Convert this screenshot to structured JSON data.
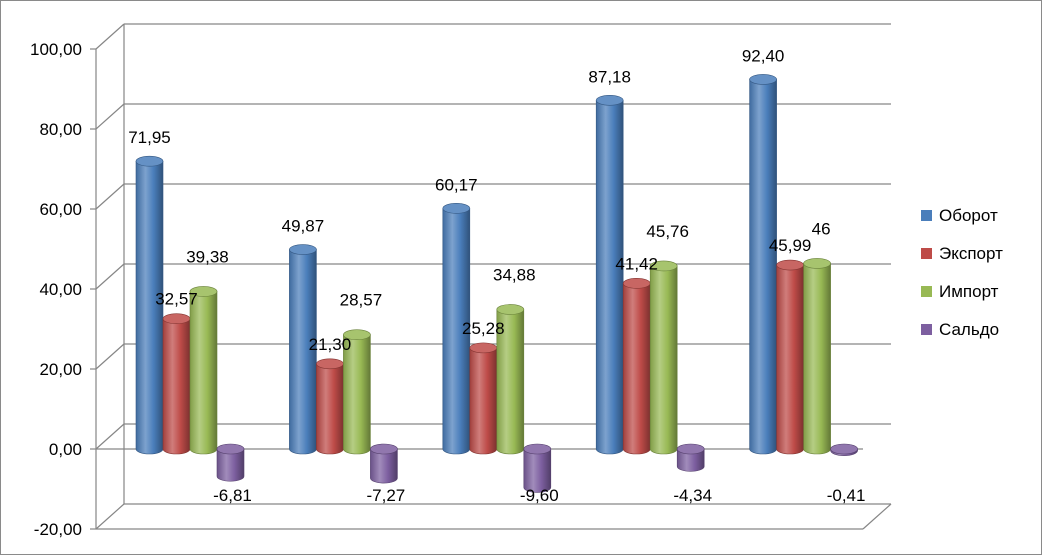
{
  "chart_data": {
    "type": "bar",
    "categories": [
      "",
      "",
      "",
      "",
      ""
    ],
    "series": [
      {
        "name": "Оборот",
        "color": "#4a7ebb",
        "values": [
          71.95,
          49.87,
          60.17,
          87.18,
          92.4
        ],
        "labels": [
          "71,95",
          "49,87",
          "60,17",
          "87,18",
          "92,40"
        ]
      },
      {
        "name": "Экспорт",
        "color": "#be4b48",
        "values": [
          32.57,
          21.3,
          25.28,
          41.42,
          45.99
        ],
        "labels": [
          "32,57",
          "21,30",
          "25,28",
          "41,42",
          "45,99"
        ]
      },
      {
        "name": "Импорт",
        "color": "#98b954",
        "values": [
          39.38,
          28.57,
          34.88,
          45.76,
          46.4
        ],
        "labels": [
          "39,38",
          "28,57",
          "34,88",
          "45,76",
          "46"
        ]
      },
      {
        "name": "Сальдо",
        "color": "#7d5fa0",
        "values": [
          -6.81,
          -7.27,
          -9.6,
          -4.34,
          -0.41
        ],
        "labels": [
          "-6,81",
          "-7,27",
          "-9,60",
          "-4,34",
          "-0,41"
        ]
      }
    ],
    "ylim": [
      -20,
      100
    ],
    "yticks": [
      "-20,00",
      "0,00",
      "20,00",
      "40,00",
      "60,00",
      "80,00",
      "100,00"
    ],
    "grid": true,
    "legend_position": "right",
    "style": "3d-cylinder"
  }
}
